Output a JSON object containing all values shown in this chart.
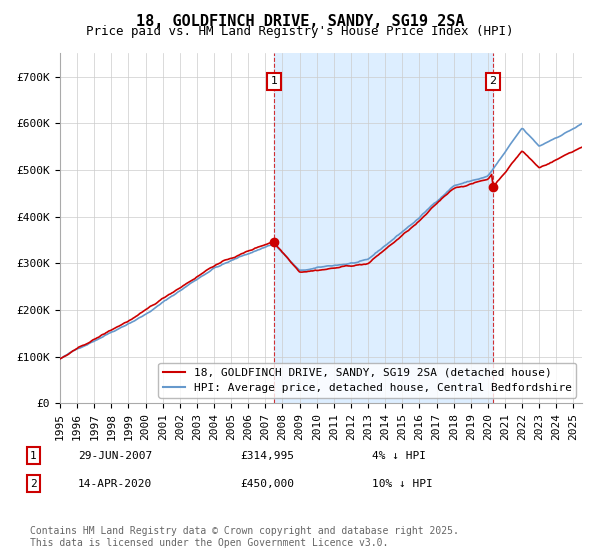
{
  "title": "18, GOLDFINCH DRIVE, SANDY, SG19 2SA",
  "subtitle": "Price paid vs. HM Land Registry's House Price Index (HPI)",
  "legend_label_red": "18, GOLDFINCH DRIVE, SANDY, SG19 2SA (detached house)",
  "legend_label_blue": "HPI: Average price, detached house, Central Bedfordshire",
  "footnote": "Contains HM Land Registry data © Crown copyright and database right 2025.\nThis data is licensed under the Open Government Licence v3.0.",
  "marker1_label": "1",
  "marker1_date": "29-JUN-2007",
  "marker1_price": "£314,995",
  "marker1_hpi": "4% ↓ HPI",
  "marker2_label": "2",
  "marker2_date": "14-APR-2020",
  "marker2_price": "£450,000",
  "marker2_hpi": "10% ↓ HPI",
  "marker1_x": 2007.5,
  "marker2_x": 2020.3,
  "ylim": [
    0,
    750000
  ],
  "xlim_start": 1995,
  "xlim_end": 2025.5,
  "yticks": [
    0,
    100000,
    200000,
    300000,
    400000,
    500000,
    600000,
    700000
  ],
  "ytick_labels": [
    "£0",
    "£100K",
    "£200K",
    "£300K",
    "£400K",
    "£500K",
    "£600K",
    "£700K"
  ],
  "xtick_years": [
    1995,
    1996,
    1997,
    1998,
    1999,
    2000,
    2001,
    2002,
    2003,
    2004,
    2005,
    2006,
    2007,
    2008,
    2009,
    2010,
    2011,
    2012,
    2013,
    2014,
    2015,
    2016,
    2017,
    2018,
    2019,
    2020,
    2021,
    2022,
    2023,
    2024,
    2025
  ],
  "red_color": "#cc0000",
  "blue_color": "#6699cc",
  "shade_color": "#ddeeff",
  "grid_color": "#cccccc",
  "bg_color": "#ffffff",
  "title_fontsize": 11,
  "subtitle_fontsize": 9,
  "axis_fontsize": 8,
  "legend_fontsize": 8,
  "footnote_fontsize": 7
}
